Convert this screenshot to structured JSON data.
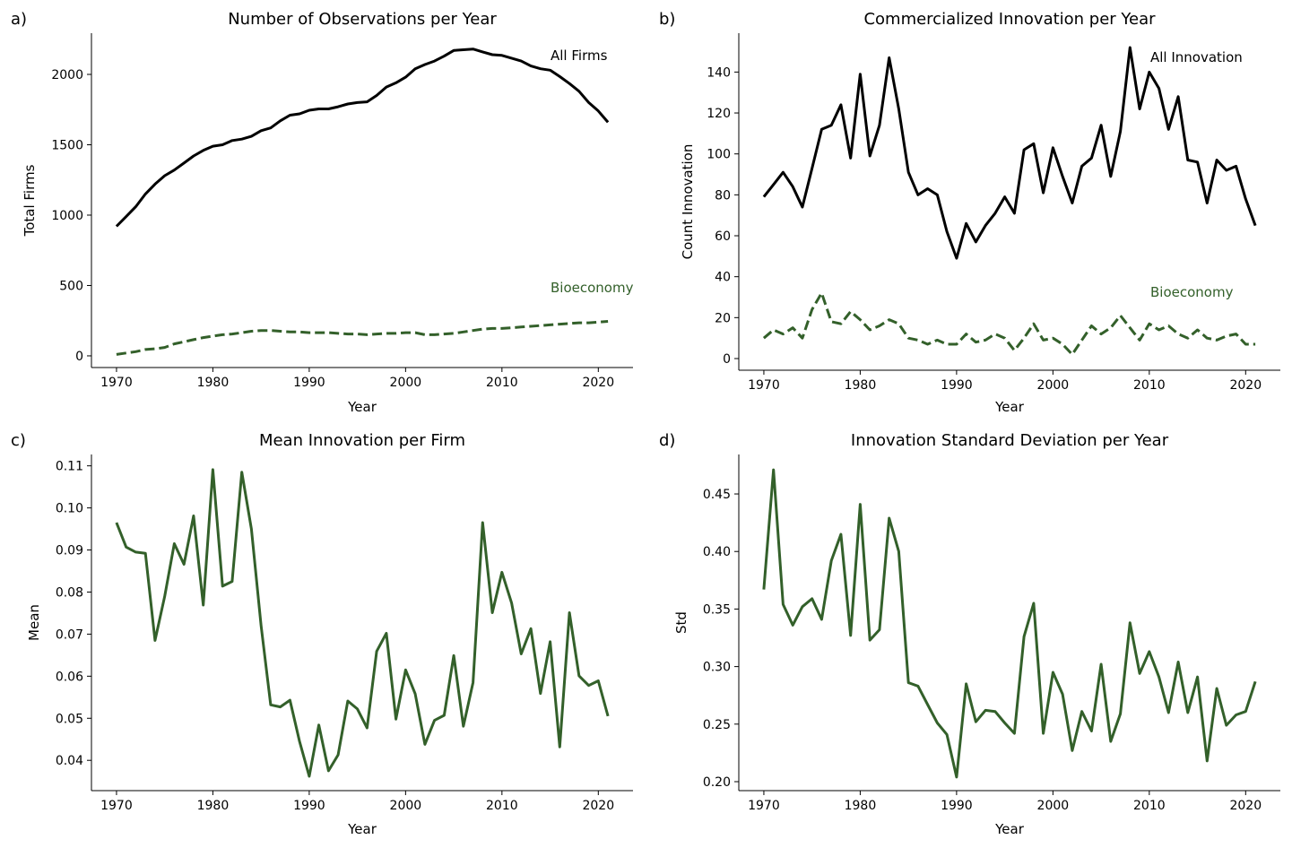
{
  "colors": {
    "all": "#000000",
    "bio": "#33602a"
  },
  "chart_data": [
    {
      "panel": "a)",
      "type": "line",
      "title": "Number of Observations per Year",
      "xlabel": "Year",
      "ylabel": "Total Firms",
      "xlim": [
        1967.4,
        2023.6
      ],
      "ylim": [
        -83,
        2293
      ],
      "xticks": [
        1970,
        1980,
        1990,
        2000,
        2010,
        2020
      ],
      "yticks": [
        0,
        500,
        1000,
        1500,
        2000
      ],
      "x": [
        1970,
        1971,
        1972,
        1973,
        1974,
        1975,
        1976,
        1977,
        1978,
        1979,
        1980,
        1981,
        1982,
        1983,
        1984,
        1985,
        1986,
        1987,
        1988,
        1989,
        1990,
        1991,
        1992,
        1993,
        1994,
        1995,
        1996,
        1997,
        1998,
        1999,
        2000,
        2001,
        2002,
        2003,
        2004,
        2005,
        2006,
        2007,
        2008,
        2009,
        2010,
        2011,
        2012,
        2013,
        2014,
        2015,
        2016,
        2017,
        2018,
        2019,
        2020,
        2021
      ],
      "series": [
        {
          "name": "All Firms",
          "style": "solid",
          "color_key": "all",
          "values": [
            920,
            990,
            1060,
            1150,
            1220,
            1280,
            1320,
            1370,
            1420,
            1460,
            1490,
            1500,
            1530,
            1540,
            1560,
            1600,
            1620,
            1670,
            1710,
            1720,
            1745,
            1755,
            1755,
            1770,
            1790,
            1800,
            1805,
            1850,
            1910,
            1940,
            1980,
            2040,
            2070,
            2095,
            2130,
            2170,
            2175,
            2180,
            2160,
            2140,
            2135,
            2115,
            2095,
            2060,
            2040,
            2030,
            1985,
            1935,
            1880,
            1800,
            1740,
            1660
          ]
        },
        {
          "name": "Bioeconomy",
          "style": "dashed",
          "color_key": "bio",
          "values": [
            10,
            20,
            30,
            45,
            50,
            60,
            85,
            100,
            115,
            130,
            140,
            150,
            155,
            165,
            175,
            180,
            180,
            175,
            170,
            170,
            165,
            165,
            165,
            160,
            155,
            155,
            150,
            155,
            160,
            160,
            165,
            165,
            150,
            150,
            155,
            160,
            170,
            180,
            190,
            195,
            195,
            200,
            205,
            210,
            215,
            220,
            225,
            230,
            235,
            235,
            240,
            245
          ]
        }
      ]
    },
    {
      "panel": "b)",
      "type": "line",
      "title": "Commercialized Innovation per Year",
      "xlabel": "Year",
      "ylabel": "Count Innovation",
      "xlim": [
        1967.4,
        2023.6
      ],
      "ylim": [
        -5.7,
        159
      ],
      "xticks": [
        1970,
        1980,
        1990,
        2000,
        2010,
        2020
      ],
      "yticks": [
        0,
        20,
        40,
        60,
        80,
        100,
        120,
        140
      ],
      "x": [
        1970,
        1971,
        1972,
        1973,
        1974,
        1975,
        1976,
        1977,
        1978,
        1979,
        1980,
        1981,
        1982,
        1983,
        1984,
        1985,
        1986,
        1987,
        1988,
        1989,
        1990,
        1991,
        1992,
        1993,
        1994,
        1995,
        1996,
        1997,
        1998,
        1999,
        2000,
        2001,
        2002,
        2003,
        2004,
        2005,
        2006,
        2007,
        2008,
        2009,
        2010,
        2011,
        2012,
        2013,
        2014,
        2015,
        2016,
        2017,
        2018,
        2019,
        2020,
        2021
      ],
      "series": [
        {
          "name": "All Innovation",
          "style": "solid",
          "color_key": "all",
          "values": [
            79,
            85,
            91,
            84,
            74,
            93,
            112,
            114,
            124,
            98,
            139,
            99,
            114,
            147,
            122,
            91,
            80,
            83,
            80,
            62,
            49,
            66,
            57,
            65,
            71,
            79,
            71,
            102,
            105,
            81,
            103,
            89,
            76,
            94,
            98,
            114,
            89,
            111,
            152,
            122,
            140,
            132,
            112,
            128,
            97,
            96,
            76,
            97,
            92,
            94,
            78,
            65
          ]
        },
        {
          "name": "Bioeconomy",
          "style": "dashed",
          "color_key": "bio",
          "values": [
            10,
            14,
            12,
            15,
            10,
            24,
            32,
            18,
            17,
            23,
            19,
            14,
            16,
            19,
            17,
            10,
            9,
            7,
            9,
            7,
            7,
            12,
            8,
            9,
            12,
            10,
            4,
            10,
            17,
            9,
            10,
            7,
            2,
            9,
            16,
            12,
            15,
            21,
            15,
            9,
            17,
            14,
            16,
            12,
            10,
            14,
            10,
            9,
            11,
            12,
            7,
            7
          ]
        }
      ]
    },
    {
      "panel": "c)",
      "type": "line",
      "title": "Mean Innovation per Firm",
      "xlabel": "Year",
      "ylabel": "Mean",
      "xlim": [
        1967.4,
        2023.6
      ],
      "ylim": [
        0.0328,
        0.1127
      ],
      "xticks": [
        1970,
        1980,
        1990,
        2000,
        2010,
        2020
      ],
      "yticks": [
        0.04,
        0.05,
        0.06,
        0.07,
        0.08,
        0.09,
        0.1,
        0.11
      ],
      "ytick_labels": [
        "0.04",
        "0.05",
        "0.06",
        "0.07",
        "0.08",
        "0.09",
        "0.10",
        "0.11"
      ],
      "x": [
        1970,
        1971,
        1972,
        1973,
        1974,
        1975,
        1976,
        1977,
        1978,
        1979,
        1980,
        1981,
        1982,
        1983,
        1984,
        1985,
        1986,
        1987,
        1988,
        1989,
        1990,
        1991,
        1992,
        1993,
        1994,
        1995,
        1996,
        1997,
        1998,
        1999,
        2000,
        2001,
        2002,
        2003,
        2004,
        2005,
        2006,
        2007,
        2008,
        2009,
        2010,
        2011,
        2012,
        2013,
        2014,
        2015,
        2016,
        2017,
        2018,
        2019,
        2020,
        2021
      ],
      "series": [
        {
          "style": "solid",
          "color_key": "bio",
          "values": [
            0.0965,
            0.0907,
            0.0895,
            0.0892,
            0.0685,
            0.079,
            0.0915,
            0.0866,
            0.0981,
            0.0769,
            0.1091,
            0.0814,
            0.0825,
            0.1085,
            0.095,
            0.072,
            0.0532,
            0.0527,
            0.0543,
            0.0445,
            0.0362,
            0.0484,
            0.0375,
            0.0413,
            0.0541,
            0.0522,
            0.0477,
            0.0659,
            0.0702,
            0.0498,
            0.0615,
            0.0558,
            0.0438,
            0.0495,
            0.0507,
            0.0649,
            0.0481,
            0.0585,
            0.0965,
            0.0751,
            0.0847,
            0.0774,
            0.0653,
            0.0713,
            0.0559,
            0.0682,
            0.0432,
            0.0751,
            0.0601,
            0.0578,
            0.0589,
            0.0505
          ]
        }
      ]
    },
    {
      "panel": "d)",
      "type": "line",
      "title": "Innovation Standard Deviation per Year",
      "xlabel": "Year",
      "ylabel": "Std",
      "xlim": [
        1967.4,
        2023.6
      ],
      "ylim": [
        0.1922,
        0.4843
      ],
      "xticks": [
        1970,
        1980,
        1990,
        2000,
        2010,
        2020
      ],
      "yticks": [
        0.2,
        0.25,
        0.3,
        0.35,
        0.4,
        0.45
      ],
      "ytick_labels": [
        "0.20",
        "0.25",
        "0.30",
        "0.35",
        "0.40",
        "0.45"
      ],
      "x": [
        1970,
        1971,
        1972,
        1973,
        1974,
        1975,
        1976,
        1977,
        1978,
        1979,
        1980,
        1981,
        1982,
        1983,
        1984,
        1985,
        1986,
        1987,
        1988,
        1989,
        1990,
        1991,
        1992,
        1993,
        1994,
        1995,
        1996,
        1997,
        1998,
        1999,
        2000,
        2001,
        2002,
        2003,
        2004,
        2005,
        2006,
        2007,
        2008,
        2009,
        2010,
        2011,
        2012,
        2013,
        2014,
        2015,
        2016,
        2017,
        2018,
        2019,
        2020,
        2021
      ],
      "series": [
        {
          "style": "solid",
          "color_key": "bio",
          "values": [
            0.367,
            0.471,
            0.354,
            0.336,
            0.352,
            0.359,
            0.341,
            0.392,
            0.415,
            0.327,
            0.441,
            0.323,
            0.332,
            0.429,
            0.4,
            0.286,
            0.283,
            0.267,
            0.251,
            0.241,
            0.204,
            0.285,
            0.252,
            0.262,
            0.261,
            0.251,
            0.242,
            0.326,
            0.355,
            0.242,
            0.295,
            0.276,
            0.227,
            0.261,
            0.244,
            0.302,
            0.235,
            0.259,
            0.338,
            0.294,
            0.313,
            0.291,
            0.26,
            0.304,
            0.26,
            0.291,
            0.218,
            0.281,
            0.249,
            0.258,
            0.261,
            0.287
          ]
        }
      ]
    }
  ]
}
